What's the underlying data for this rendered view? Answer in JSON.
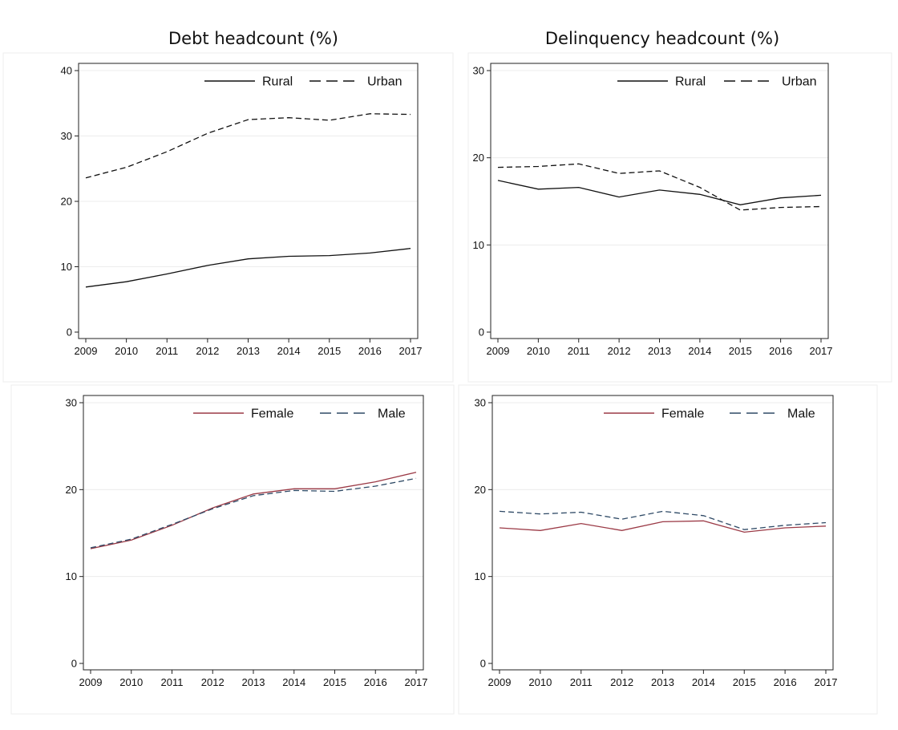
{
  "titles": {
    "left": "Debt headcount (%)",
    "right": "Delinquency headcount (%)"
  },
  "colors": {
    "rural": "#111111",
    "urban": "#111111",
    "female": "#9b3a46",
    "male": "#2f4a66"
  },
  "chart_data": [
    {
      "type": "line",
      "title": "Debt headcount (%)",
      "x": [
        2009,
        2010,
        2011,
        2012,
        2013,
        2014,
        2015,
        2016,
        2017
      ],
      "ylim": [
        0,
        40
      ],
      "yticks": [
        0,
        10,
        20,
        30,
        40
      ],
      "legend": "top-right",
      "grid": true,
      "series": [
        {
          "name": "Rural",
          "style": "solid",
          "values": [
            6.9,
            7.7,
            8.9,
            10.2,
            11.2,
            11.6,
            11.7,
            12.1,
            12.8
          ]
        },
        {
          "name": "Urban",
          "style": "dashed",
          "values": [
            23.6,
            25.2,
            27.6,
            30.4,
            32.5,
            32.8,
            32.4,
            33.4,
            33.3
          ]
        }
      ]
    },
    {
      "type": "line",
      "title": "Delinquency headcount (%)",
      "x": [
        2009,
        2010,
        2011,
        2012,
        2013,
        2014,
        2015,
        2016,
        2017
      ],
      "ylim": [
        0,
        30
      ],
      "yticks": [
        0,
        10,
        20,
        30
      ],
      "legend": "top-right",
      "grid": true,
      "series": [
        {
          "name": "Rural",
          "style": "solid",
          "values": [
            17.4,
            16.4,
            16.6,
            15.5,
            16.3,
            15.8,
            14.6,
            15.4,
            15.7
          ]
        },
        {
          "name": "Urban",
          "style": "dashed",
          "values": [
            18.9,
            19.0,
            19.3,
            18.2,
            18.5,
            16.6,
            14.0,
            14.3,
            14.4
          ]
        }
      ]
    },
    {
      "type": "line",
      "title": "",
      "x": [
        2009,
        2010,
        2011,
        2012,
        2013,
        2014,
        2015,
        2016,
        2017
      ],
      "ylim": [
        0,
        30
      ],
      "yticks": [
        0,
        10,
        20,
        30
      ],
      "legend": "top-right",
      "grid": true,
      "series": [
        {
          "name": "Female",
          "style": "solid",
          "values": [
            13.2,
            14.2,
            15.9,
            17.9,
            19.5,
            20.1,
            20.1,
            20.9,
            22.0
          ]
        },
        {
          "name": "Male",
          "style": "dashed",
          "values": [
            13.3,
            14.3,
            16.0,
            17.8,
            19.3,
            19.9,
            19.8,
            20.4,
            21.3
          ]
        }
      ]
    },
    {
      "type": "line",
      "title": "",
      "x": [
        2009,
        2010,
        2011,
        2012,
        2013,
        2014,
        2015,
        2016,
        2017
      ],
      "ylim": [
        0,
        30
      ],
      "yticks": [
        0,
        10,
        20,
        30
      ],
      "legend": "top-right",
      "grid": true,
      "series": [
        {
          "name": "Female",
          "style": "solid",
          "values": [
            15.6,
            15.3,
            16.1,
            15.3,
            16.3,
            16.4,
            15.1,
            15.6,
            15.8
          ]
        },
        {
          "name": "Male",
          "style": "dashed",
          "values": [
            17.5,
            17.2,
            17.4,
            16.6,
            17.5,
            17.0,
            15.4,
            15.9,
            16.2
          ]
        }
      ]
    }
  ]
}
